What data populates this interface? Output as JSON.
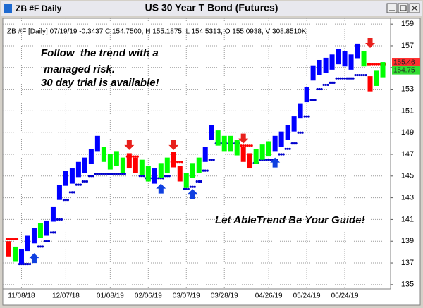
{
  "window": {
    "title": "ZB #F Daily",
    "chart_title": "US 30 Year T Bond (Futures)"
  },
  "chart_data": {
    "type": "range-bar",
    "info": "ZB #F [Daily] 07/19/19 -0.3437 C 154.7500, H 155.1875, L 154.5313, O 155.0938, V 308.8510K",
    "annotations": [
      "Follow  the trend with a",
      " managed risk.",
      "30 day trial is available!",
      "Let AbleTrend Be Your Guide!"
    ],
    "highs": [
      139,
      138.5,
      138.3,
      139.5,
      140.2,
      140.7,
      140.9,
      142.2,
      144.2,
      145.5,
      145.7,
      146.3,
      146.7,
      147.5,
      148.7,
      147.7,
      147,
      147.3,
      146.7,
      147.1,
      146.7,
      146.5,
      145.9,
      145.7,
      146.2,
      146.7,
      147.2,
      145.9,
      145.3,
      146.2,
      146.7,
      147.7,
      149.7,
      149.2,
      148.7,
      148.7,
      148.3,
      147.7,
      147.1,
      147.5,
      147.9,
      148.2,
      148.7,
      149.1,
      149.7,
      150.5,
      151.7,
      153.2,
      155.2,
      155.7,
      155.9,
      156.2,
      156.7,
      156.5,
      156.2,
      157.2,
      156.5,
      154.2,
      154.7,
      155.5
    ],
    "lows": [
      137.6,
      137.1,
      136.9,
      138.1,
      138.8,
      139.3,
      139.5,
      140.8,
      142.8,
      144.1,
      144.3,
      144.9,
      145.3,
      146.1,
      147.3,
      146.3,
      145.6,
      145.9,
      145.3,
      145.7,
      145.3,
      145.1,
      144.5,
      144.3,
      144.8,
      145.3,
      145.8,
      144.5,
      143.9,
      144.8,
      145.3,
      146.3,
      148.3,
      147.8,
      147.3,
      147.3,
      146.9,
      146.3,
      145.7,
      146.1,
      146.5,
      146.8,
      147.3,
      147.7,
      148.3,
      149.1,
      150.3,
      151.8,
      153.8,
      154.3,
      154.5,
      154.8,
      155.3,
      155.1,
      154.8,
      155.8,
      155.1,
      152.8,
      153.3,
      154.1
    ],
    "colors": [
      "#ff0000",
      "#00ff00",
      "#0000ff",
      "#0000ff",
      "#0000ff",
      "#00ff00",
      "#0000ff",
      "#0000ff",
      "#0000ff",
      "#0000ff",
      "#0000ff",
      "#0000ff",
      "#0000ff",
      "#0000ff",
      "#0000ff",
      "#00ff00",
      "#00ff00",
      "#00ff00",
      "#00ff00",
      "#ff0000",
      "#ff0000",
      "#00ff00",
      "#00ff00",
      "#0000ff",
      "#00ff00",
      "#00ff00",
      "#ff0000",
      "#ff0000",
      "#00ff00",
      "#00ff00",
      "#00ff00",
      "#0000ff",
      "#0000ff",
      "#00ff00",
      "#00ff00",
      "#00ff00",
      "#00ff00",
      "#ff0000",
      "#ff0000",
      "#00ff00",
      "#00ff00",
      "#00ff00",
      "#0000ff",
      "#0000ff",
      "#0000ff",
      "#0000ff",
      "#0000ff",
      "#0000ff",
      "#0000ff",
      "#0000ff",
      "#0000ff",
      "#0000ff",
      "#0000ff",
      "#0000ff",
      "#0000ff",
      "#0000ff",
      "#00ff00",
      "#ff0000",
      "#00ff00",
      "#00ff00"
    ],
    "stops": [
      139.2,
      139.2,
      136.9,
      136.9,
      137.5,
      138.5,
      139,
      139.8,
      141,
      142.8,
      143.5,
      144.2,
      144.5,
      145,
      145.2,
      145.2,
      145.2,
      145.2,
      145.2,
      146.8,
      146.8,
      145,
      144.8,
      144.8,
      144.8,
      145,
      146.3,
      146.3,
      143.8,
      144,
      144.5,
      145.5,
      146.5,
      148,
      148,
      148,
      148,
      147.8,
      147.8,
      146.2,
      146.5,
      146.5,
      146.5,
      147,
      147.5,
      148,
      149,
      150.5,
      152,
      153,
      153.4,
      153.6,
      154,
      154,
      154,
      154.3,
      154.3,
      155.3,
      155.3,
      155.3
    ],
    "stop_colors": [
      "#ff0000",
      "#ff0000",
      "#0000cc",
      "#0000cc",
      "#0000cc",
      "#0000cc",
      "#0000cc",
      "#0000cc",
      "#0000cc",
      "#0000cc",
      "#0000cc",
      "#0000cc",
      "#0000cc",
      "#0000cc",
      "#0000cc",
      "#0000cc",
      "#0000cc",
      "#0000cc",
      "#0000cc",
      "#ff0000",
      "#ff0000",
      "#0000cc",
      "#0000cc",
      "#0000cc",
      "#0000cc",
      "#0000cc",
      "#ff0000",
      "#ff0000",
      "#0000cc",
      "#0000cc",
      "#0000cc",
      "#0000cc",
      "#0000cc",
      "#0000cc",
      "#0000cc",
      "#0000cc",
      "#0000cc",
      "#ff0000",
      "#ff0000",
      "#0000cc",
      "#0000cc",
      "#0000cc",
      "#0000cc",
      "#0000cc",
      "#0000cc",
      "#0000cc",
      "#0000cc",
      "#0000cc",
      "#0000cc",
      "#0000cc",
      "#0000cc",
      "#0000cc",
      "#0000cc",
      "#0000cc",
      "#0000cc",
      "#0000cc",
      "#0000cc",
      "#ff0000",
      "#ff0000",
      "#ff0000"
    ],
    "signals": [
      {
        "index": 19,
        "price": 147.4,
        "dir": "down",
        "color": "#e8201c"
      },
      {
        "index": 26,
        "price": 147.4,
        "dir": "down",
        "color": "#e8201c"
      },
      {
        "index": 37,
        "price": 148,
        "dir": "down",
        "color": "#e8201c"
      },
      {
        "index": 57,
        "price": 156.8,
        "dir": "down",
        "color": "#e8201c"
      },
      {
        "index": 4,
        "price": 137.9,
        "dir": "up",
        "color": "#1040e0"
      },
      {
        "index": 24,
        "price": 144.3,
        "dir": "up",
        "color": "#1040e0"
      },
      {
        "index": 29,
        "price": 143.8,
        "dir": "up",
        "color": "#1040e0"
      },
      {
        "index": 42,
        "price": 146.7,
        "dir": "up",
        "color": "#1040e0"
      }
    ],
    "last_labels": [
      {
        "value": 155.46,
        "color": "#ff3030"
      },
      {
        "value": 154.75,
        "color": "#33dd33"
      }
    ],
    "xlim": [
      -0.5,
      60
    ],
    "xticks": [
      {
        "value": 2,
        "label": "11/08/18"
      },
      {
        "value": 9,
        "label": "12/07/18"
      },
      {
        "value": 16,
        "label": "01/08/19"
      },
      {
        "value": 22,
        "label": "02/06/19"
      },
      {
        "value": 28,
        "label": "03/07/19"
      },
      {
        "value": 34,
        "label": "03/28/19"
      },
      {
        "value": 41,
        "label": "04/26/19"
      },
      {
        "value": 47,
        "label": "05/24/19"
      },
      {
        "value": 53,
        "label": "06/24/19"
      }
    ],
    "ylim": [
      134.6,
      159.4
    ],
    "yticks": [
      135,
      137,
      139,
      141,
      143,
      145,
      147,
      149,
      151,
      153,
      155,
      157,
      159
    ],
    "grid": true
  }
}
